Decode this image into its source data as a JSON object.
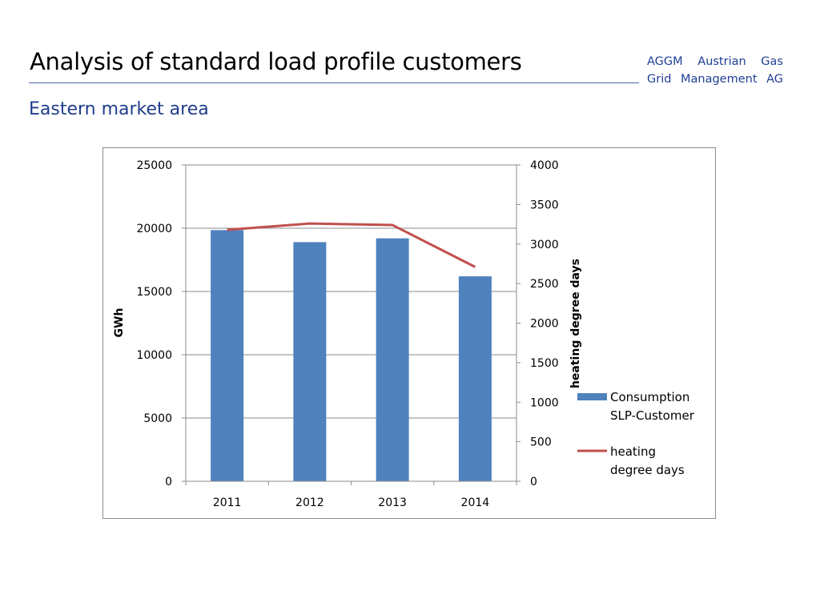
{
  "slide": {
    "title": "Analysis of standard load profile customers",
    "company_line1": "AGGM Austrian Gas",
    "company_line2": "Grid Management AG",
    "subtitle": "Eastern market area"
  },
  "chart_data": {
    "type": "bar",
    "categories": [
      "2011",
      "2012",
      "2013",
      "2014"
    ],
    "series": [
      {
        "name": "Consumption SLP-Customer",
        "type": "bar",
        "axis": "left",
        "color": "#4f81bd",
        "values": [
          19850,
          18900,
          19200,
          16200
        ]
      },
      {
        "name": "heating degree days",
        "type": "line",
        "axis": "right",
        "color": "#c0504d",
        "values": [
          3180,
          3260,
          3240,
          2710
        ]
      }
    ],
    "legend_lines": [
      [
        "Consumption",
        "SLP-Customer"
      ],
      [
        "heating",
        "degree days"
      ]
    ],
    "title": "",
    "xlabel": "",
    "ylabel": "GWh",
    "y2label": "heating degree days",
    "ylim": [
      0,
      25000
    ],
    "y2lim": [
      0,
      4000
    ],
    "yticks": [
      "0",
      "5000",
      "10000",
      "15000",
      "20000",
      "25000"
    ],
    "y2ticks": [
      "0",
      "500",
      "1000",
      "1500",
      "2000",
      "2500",
      "3000",
      "3500",
      "4000"
    ],
    "grid": true,
    "legend_position": "right"
  }
}
